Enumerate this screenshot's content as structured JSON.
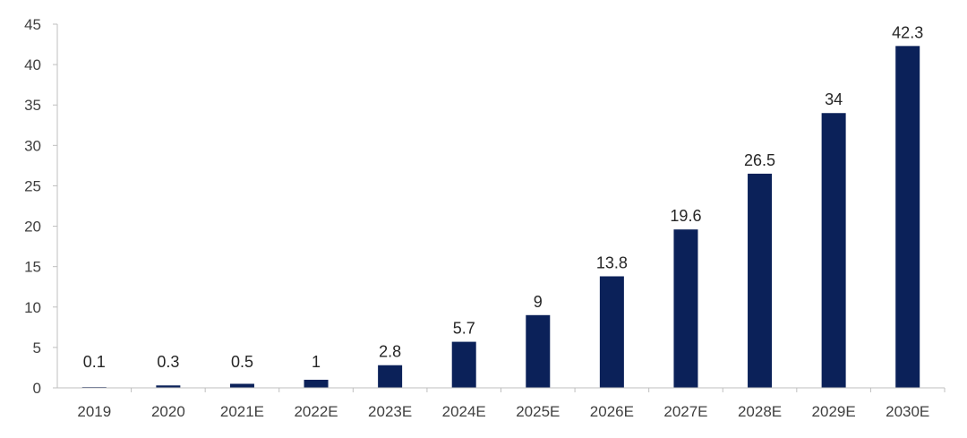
{
  "chart_data": {
    "type": "bar",
    "categories": [
      "2019",
      "2020",
      "2021E",
      "2022E",
      "2023E",
      "2024E",
      "2025E",
      "2026E",
      "2027E",
      "2028E",
      "2029E",
      "2030E"
    ],
    "values": [
      0.1,
      0.3,
      0.5,
      1,
      2.8,
      5.7,
      9,
      13.8,
      19.6,
      26.5,
      34,
      42.3
    ],
    "value_labels": [
      "0.1",
      "0.3",
      "0.5",
      "1",
      "2.8",
      "5.7",
      "9",
      "13.8",
      "19.6",
      "26.5",
      "34",
      "42.3"
    ],
    "ylim": [
      0,
      45
    ],
    "yticks": [
      0,
      5,
      10,
      15,
      20,
      25,
      30,
      35,
      40,
      45
    ],
    "ytick_labels": [
      "0",
      "5",
      "10",
      "15",
      "20",
      "25",
      "30",
      "35",
      "40",
      "45"
    ],
    "grid": false,
    "legend": "none",
    "bar_color": "#0b2159",
    "axis_color": "#bfbfbf"
  }
}
